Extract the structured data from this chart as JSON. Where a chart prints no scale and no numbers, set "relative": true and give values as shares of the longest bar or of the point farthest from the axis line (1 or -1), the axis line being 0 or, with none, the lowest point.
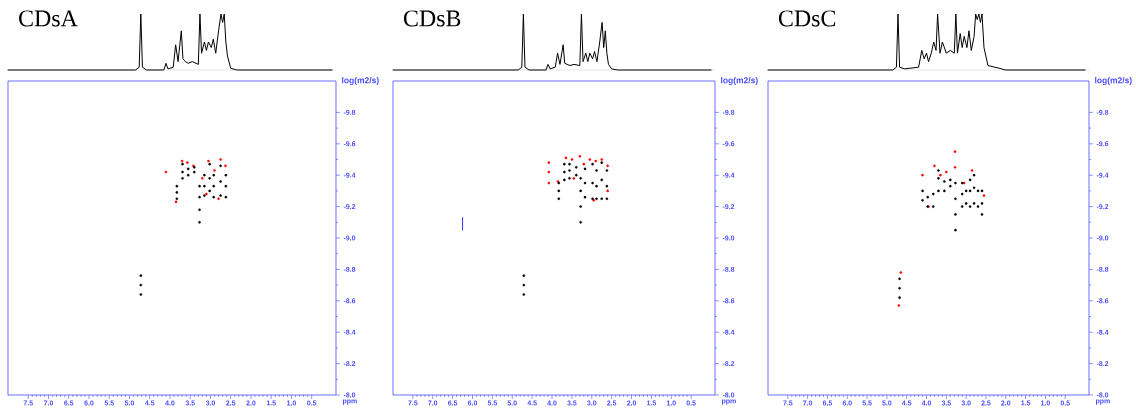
{
  "chart_data": [
    {
      "type": "line",
      "title": "CDsA",
      "relative": true,
      "xlim": [
        8.0,
        -0.1
      ],
      "series": [
        {
          "color": "#000000",
          "x": [
            8.0,
            4.85,
            4.76,
            4.72,
            4.68,
            4.58,
            4.15,
            4.1,
            4.05,
            3.92,
            3.86,
            3.8,
            3.72,
            3.68,
            3.62,
            3.55,
            3.45,
            3.3,
            3.26,
            3.22,
            3.15,
            3.1,
            3.05,
            2.98,
            2.93,
            2.87,
            2.8,
            2.74,
            2.7,
            2.66,
            2.62,
            2.58,
            2.5,
            2.35,
            0.0
          ],
          "values": [
            0,
            0,
            0.05,
            1,
            0.05,
            0,
            0,
            0.12,
            0.02,
            0.05,
            0.45,
            0.15,
            0.7,
            0.2,
            0.15,
            0.12,
            0.15,
            0.1,
            1,
            0.3,
            0.5,
            0.35,
            0.5,
            0.4,
            0.55,
            0.3,
            0.7,
            1,
            0.85,
            1,
            0.5,
            0.25,
            0.03,
            0,
            0
          ]
        }
      ]
    },
    {
      "type": "scatter",
      "xlabel": "ppm",
      "ylabel": "log(m2/s)",
      "marker": "circle",
      "xlim": [
        8.0,
        -0.1
      ],
      "ylim": [
        -8.0,
        -10.0
      ],
      "xticks": [
        {
          "value": 7.5,
          "label": "7.5"
        },
        {
          "value": 7.0,
          "label": "7.0"
        },
        {
          "value": 6.5,
          "label": "6.5"
        },
        {
          "value": 6.0,
          "label": "6.0"
        },
        {
          "value": 5.5,
          "label": "5.5"
        },
        {
          "value": 5.0,
          "label": "5.0"
        },
        {
          "value": 4.5,
          "label": "4.5"
        },
        {
          "value": 4.0,
          "label": "4.0"
        },
        {
          "value": 3.5,
          "label": "3.5"
        },
        {
          "value": 3.0,
          "label": "3.0"
        },
        {
          "value": 2.5,
          "label": "2.5"
        },
        {
          "value": 2.0,
          "label": "2.0"
        },
        {
          "value": 1.5,
          "label": "1.5"
        },
        {
          "value": 1.0,
          "label": "1.0"
        },
        {
          "value": 0.5,
          "label": "0.5"
        }
      ],
      "yticks": [
        {
          "value": -8.0,
          "label": "-8.0"
        },
        {
          "value": -8.2,
          "label": "-8.2"
        },
        {
          "value": -8.4,
          "label": "-8.4"
        },
        {
          "value": -8.6,
          "label": "-8.6"
        },
        {
          "value": -8.8,
          "label": "-8.8"
        },
        {
          "value": -9.0,
          "label": "-9.0"
        },
        {
          "value": -9.2,
          "label": "-9.2"
        },
        {
          "value": -9.4,
          "label": "-9.4"
        },
        {
          "value": -9.6,
          "label": "-9.6"
        },
        {
          "value": -9.8,
          "label": "-9.8"
        }
      ],
      "series": [
        {
          "color": "#ff0000",
          "x": [
            4.1,
            3.85,
            3.7,
            3.57,
            3.42,
            3.2,
            3.05,
            2.9,
            2.75,
            2.63,
            2.8,
            3.1
          ],
          "values": [
            -9.42,
            -9.23,
            -9.49,
            -9.48,
            -9.46,
            -9.38,
            -9.49,
            -9.43,
            -9.5,
            -9.46,
            -9.25,
            -9.28
          ]
        },
        {
          "color": "#000000",
          "x": [
            4.72,
            4.72,
            4.72,
            3.83,
            3.83,
            3.83,
            3.69,
            3.69,
            3.69,
            3.55,
            3.55,
            3.4,
            3.4,
            3.27,
            3.27,
            3.27,
            3.27,
            3.15,
            3.15,
            3.15,
            3.02,
            3.02,
            3.02,
            2.92,
            2.92,
            2.92,
            2.75,
            2.75,
            2.75,
            2.62,
            2.62,
            2.62
          ],
          "values": [
            -8.64,
            -8.7,
            -8.76,
            -9.25,
            -9.29,
            -9.33,
            -9.38,
            -9.42,
            -9.47,
            -9.4,
            -9.44,
            -9.42,
            -9.45,
            -9.1,
            -9.18,
            -9.26,
            -9.33,
            -9.27,
            -9.33,
            -9.4,
            -9.3,
            -9.38,
            -9.47,
            -9.26,
            -9.33,
            -9.4,
            -9.27,
            -9.36,
            -9.46,
            -9.26,
            -9.33,
            -9.4
          ]
        }
      ]
    },
    {
      "type": "line",
      "title": "CDsB",
      "relative": true,
      "xlim": [
        8.0,
        -0.1
      ],
      "series": [
        {
          "color": "#000000",
          "x": [
            8.0,
            4.85,
            4.76,
            4.72,
            4.68,
            4.58,
            4.15,
            4.1,
            4.05,
            3.92,
            3.86,
            3.8,
            3.72,
            3.68,
            3.62,
            3.55,
            3.45,
            3.3,
            3.26,
            3.22,
            3.15,
            3.1,
            3.05,
            2.98,
            2.93,
            2.87,
            2.8,
            2.74,
            2.7,
            2.66,
            2.62,
            2.58,
            2.5,
            2.35,
            0.0
          ],
          "values": [
            0,
            0,
            0.05,
            1,
            0.05,
            0,
            0,
            0.1,
            0.02,
            0.05,
            0.3,
            0.1,
            0.45,
            0.12,
            0.1,
            0.08,
            0.1,
            0.08,
            1,
            0.15,
            0.3,
            0.15,
            0.3,
            0.2,
            0.33,
            0.15,
            0.5,
            0.85,
            0.4,
            0.7,
            0.3,
            0.1,
            0.02,
            0,
            0
          ]
        }
      ]
    },
    {
      "type": "scatter",
      "xlabel": "ppm",
      "ylabel": "log(m2/s)",
      "marker": "circle",
      "xlim": [
        8.0,
        -0.1
      ],
      "ylim": [
        -8.0,
        -10.0
      ],
      "xticks": [
        {
          "value": 7.5,
          "label": "7.5"
        },
        {
          "value": 7.0,
          "label": "7.0"
        },
        {
          "value": 6.5,
          "label": "6.5"
        },
        {
          "value": 6.0,
          "label": "6.0"
        },
        {
          "value": 5.5,
          "label": "5.5"
        },
        {
          "value": 5.0,
          "label": "5.0"
        },
        {
          "value": 4.5,
          "label": "4.5"
        },
        {
          "value": 4.0,
          "label": "4.0"
        },
        {
          "value": 3.5,
          "label": "3.5"
        },
        {
          "value": 3.0,
          "label": "3.0"
        },
        {
          "value": 2.5,
          "label": "2.5"
        },
        {
          "value": 2.0,
          "label": "2.0"
        },
        {
          "value": 1.5,
          "label": "1.5"
        },
        {
          "value": 1.0,
          "label": "1.0"
        },
        {
          "value": 0.5,
          "label": "0.5"
        }
      ],
      "yticks": [
        {
          "value": -8.0,
          "label": "-8.0"
        },
        {
          "value": -8.2,
          "label": "-8.2"
        },
        {
          "value": -8.4,
          "label": "-8.4"
        },
        {
          "value": -8.6,
          "label": "-8.6"
        },
        {
          "value": -8.8,
          "label": "-8.8"
        },
        {
          "value": -9.0,
          "label": "-9.0"
        },
        {
          "value": -9.2,
          "label": "-9.2"
        },
        {
          "value": -9.4,
          "label": "-9.4"
        },
        {
          "value": -9.6,
          "label": "-9.6"
        },
        {
          "value": -9.8,
          "label": "-9.8"
        }
      ],
      "series": [
        {
          "color": "#ff0000",
          "x": [
            4.08,
            4.08,
            4.08,
            3.85,
            3.65,
            3.5,
            3.3,
            3.2,
            3.05,
            2.9,
            2.75,
            2.6,
            2.6,
            2.95,
            3.45
          ],
          "values": [
            -9.35,
            -9.42,
            -9.48,
            -9.36,
            -9.51,
            -9.5,
            -9.52,
            -9.47,
            -9.5,
            -9.49,
            -9.5,
            -9.46,
            -9.3,
            -9.24,
            -9.38
          ]
        },
        {
          "color": "#000000",
          "x": [
            4.71,
            4.71,
            4.71,
            3.83,
            3.83,
            3.83,
            3.69,
            3.69,
            3.69,
            3.56,
            3.56,
            3.56,
            3.39,
            3.39,
            3.28,
            3.28,
            3.28,
            3.28,
            3.17,
            3.17,
            3.17,
            2.98,
            2.98,
            2.98,
            2.88,
            2.88,
            2.88,
            2.75,
            2.75,
            2.75,
            2.62,
            2.62,
            2.62
          ],
          "values": [
            -8.64,
            -8.7,
            -8.76,
            -9.25,
            -9.3,
            -9.35,
            -9.37,
            -9.42,
            -9.47,
            -9.38,
            -9.43,
            -9.47,
            -9.4,
            -9.45,
            -9.1,
            -9.2,
            -9.3,
            -9.38,
            -9.26,
            -9.35,
            -9.44,
            -9.25,
            -9.35,
            -9.47,
            -9.25,
            -9.33,
            -9.43,
            -9.25,
            -9.37,
            -9.48,
            -9.25,
            -9.33,
            -9.43
          ]
        },
        {
          "type": "line",
          "marker": "none",
          "color": "#3333ff",
          "x": [
            6.25,
            6.25
          ],
          "values": [
            -9.05,
            -9.13
          ]
        }
      ]
    },
    {
      "type": "line",
      "title": "CDsC",
      "relative": true,
      "xlim": [
        8.0,
        -0.1
      ],
      "series": [
        {
          "color": "#000000",
          "x": [
            8.0,
            4.85,
            4.76,
            4.72,
            4.68,
            4.55,
            4.2,
            4.12,
            4.06,
            4.0,
            3.95,
            3.88,
            3.82,
            3.76,
            3.72,
            3.66,
            3.6,
            3.5,
            3.4,
            3.3,
            3.26,
            3.22,
            3.15,
            3.1,
            3.05,
            2.98,
            2.93,
            2.87,
            2.8,
            2.76,
            2.72,
            2.68,
            2.64,
            2.6,
            2.55,
            2.45,
            2.1,
            2.07,
            2.0,
            0.0
          ],
          "values": [
            0,
            0,
            0.05,
            1,
            0.05,
            0.02,
            0.05,
            0.35,
            0.2,
            0.3,
            0.15,
            0.3,
            0.5,
            0.35,
            1,
            0.3,
            0.5,
            0.3,
            0.35,
            0.3,
            1,
            0.3,
            0.65,
            0.4,
            0.6,
            0.4,
            0.7,
            0.35,
            0.6,
            1,
            0.9,
            1,
            0.85,
            1,
            0.4,
            0.08,
            0.02,
            0.01,
            0,
            0
          ]
        }
      ]
    },
    {
      "type": "scatter",
      "xlabel": "ppm",
      "ylabel": "log(m2/s)",
      "marker": "circle",
      "xlim": [
        8.0,
        -0.1
      ],
      "ylim": [
        -8.0,
        -10.0
      ],
      "xticks": [
        {
          "value": 7.5,
          "label": "7.5"
        },
        {
          "value": 7.0,
          "label": "7.0"
        },
        {
          "value": 6.5,
          "label": "6.5"
        },
        {
          "value": 6.0,
          "label": "6.0"
        },
        {
          "value": 5.5,
          "label": "5.5"
        },
        {
          "value": 5.0,
          "label": "5.0"
        },
        {
          "value": 4.5,
          "label": "4.5"
        },
        {
          "value": 4.0,
          "label": "4.0"
        },
        {
          "value": 3.5,
          "label": "3.5"
        },
        {
          "value": 3.0,
          "label": "3.0"
        },
        {
          "value": 2.5,
          "label": "2.5"
        },
        {
          "value": 2.0,
          "label": "2.0"
        },
        {
          "value": 1.5,
          "label": "1.5"
        },
        {
          "value": 1.0,
          "label": "1.0"
        },
        {
          "value": 0.5,
          "label": "0.5"
        }
      ],
      "yticks": [
        {
          "value": -8.0,
          "label": "-8.0"
        },
        {
          "value": -8.2,
          "label": "-8.2"
        },
        {
          "value": -8.4,
          "label": "-8.4"
        },
        {
          "value": -8.6,
          "label": "-8.6"
        },
        {
          "value": -8.8,
          "label": "-8.8"
        },
        {
          "value": -9.0,
          "label": "-9.0"
        },
        {
          "value": -9.2,
          "label": "-9.2"
        },
        {
          "value": -9.4,
          "label": "-9.4"
        },
        {
          "value": -9.6,
          "label": "-9.6"
        },
        {
          "value": -9.8,
          "label": "-9.8"
        }
      ],
      "series": [
        {
          "color": "#ff0000",
          "x": [
            4.7,
            4.65,
            4.1,
            3.8,
            3.65,
            3.28,
            3.28,
            3.05,
            2.85,
            2.55,
            3.5,
            3.95
          ],
          "values": [
            -8.57,
            -8.78,
            -9.4,
            -9.46,
            -9.4,
            -9.55,
            -9.45,
            -9.35,
            -9.43,
            -9.27,
            -9.42,
            -9.2
          ]
        },
        {
          "color": "#000000",
          "x": [
            4.68,
            4.68,
            4.68,
            4.1,
            4.1,
            3.97,
            3.97,
            3.83,
            3.83,
            3.7,
            3.7,
            3.7,
            3.55,
            3.55,
            3.4,
            3.4,
            3.27,
            3.27,
            3.27,
            3.27,
            3.1,
            3.1,
            3.1,
            3.0,
            3.0,
            2.9,
            2.9,
            2.9,
            2.8,
            2.8,
            2.8,
            2.7,
            2.7,
            2.6,
            2.6,
            2.6
          ],
          "values": [
            -8.62,
            -8.68,
            -8.74,
            -9.24,
            -9.3,
            -9.2,
            -9.26,
            -9.2,
            -9.28,
            -9.3,
            -9.38,
            -9.43,
            -9.3,
            -9.36,
            -9.33,
            -9.37,
            -9.05,
            -9.15,
            -9.25,
            -9.35,
            -9.2,
            -9.28,
            -9.35,
            -9.22,
            -9.3,
            -9.2,
            -9.3,
            -9.37,
            -9.22,
            -9.32,
            -9.4,
            -9.2,
            -9.3,
            -9.15,
            -9.22,
            -9.3
          ]
        }
      ]
    }
  ]
}
